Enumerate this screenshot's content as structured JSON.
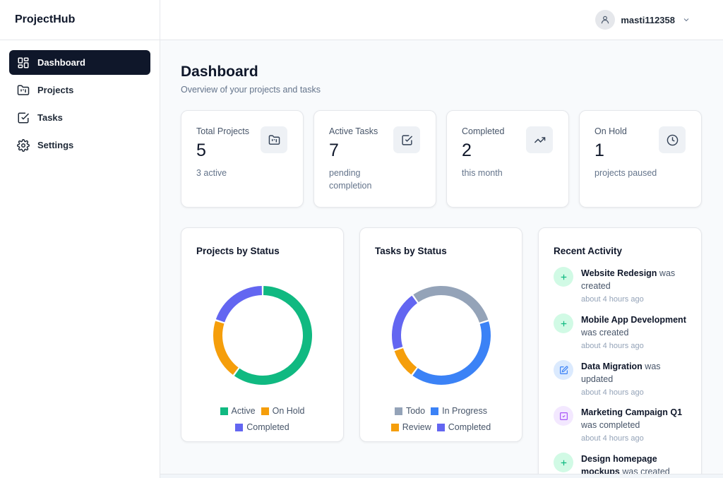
{
  "brand": "ProjectHub",
  "user": {
    "name": "masti112358"
  },
  "nav": [
    {
      "label": "Dashboard",
      "icon": "dashboard-icon",
      "active": true
    },
    {
      "label": "Projects",
      "icon": "folder-kanban-icon",
      "active": false
    },
    {
      "label": "Tasks",
      "icon": "checkbox-icon",
      "active": false
    },
    {
      "label": "Settings",
      "icon": "gear-icon",
      "active": false
    }
  ],
  "header": {
    "title": "Dashboard",
    "subtitle": "Overview of your projects and tasks"
  },
  "stats": [
    {
      "label": "Total Projects",
      "value": "5",
      "note": "3 active",
      "icon": "folder-kanban-icon"
    },
    {
      "label": "Active Tasks",
      "value": "7",
      "note": "pending completion",
      "icon": "checkbox-icon"
    },
    {
      "label": "Completed",
      "value": "2",
      "note": "this month",
      "icon": "trending-up-icon"
    },
    {
      "label": "On Hold",
      "value": "1",
      "note": "projects paused",
      "icon": "clock-icon"
    }
  ],
  "chart_data": [
    {
      "type": "pie",
      "title": "Projects by Status",
      "categories": [
        "Active",
        "On Hold",
        "Completed"
      ],
      "values": [
        3,
        1,
        1
      ],
      "colors": [
        "#10b981",
        "#f59e0b",
        "#6366f1"
      ],
      "legend": "bottom"
    },
    {
      "type": "pie",
      "title": "Tasks by Status",
      "categories": [
        "Todo",
        "In Progress",
        "Review",
        "Completed"
      ],
      "values": [
        3,
        4,
        1,
        2
      ],
      "colors": [
        "#94a3b8",
        "#3b82f6",
        "#f59e0b",
        "#6366f1"
      ],
      "legend": "bottom"
    }
  ],
  "activity": {
    "title": "Recent Activity",
    "items": [
      {
        "name": "Website Redesign",
        "action": "was created",
        "time": "about 4 hours ago",
        "icon": "plus-icon",
        "color": "#10b981",
        "bg": "#d1fae5"
      },
      {
        "name": "Mobile App Development",
        "action": "was created",
        "time": "about 4 hours ago",
        "icon": "plus-icon",
        "color": "#10b981",
        "bg": "#d1fae5"
      },
      {
        "name": "Data Migration",
        "action": "was updated",
        "time": "about 4 hours ago",
        "icon": "edit-icon",
        "color": "#3b82f6",
        "bg": "#dbeafe"
      },
      {
        "name": "Marketing Campaign Q1",
        "action": "was completed",
        "time": "about 4 hours ago",
        "icon": "checkbox-icon",
        "color": "#a855f7",
        "bg": "#f3e8ff"
      },
      {
        "name": "Design homepage mockups",
        "action": "was created",
        "time": "",
        "icon": "plus-icon",
        "color": "#10b981",
        "bg": "#d1fae5"
      }
    ]
  }
}
